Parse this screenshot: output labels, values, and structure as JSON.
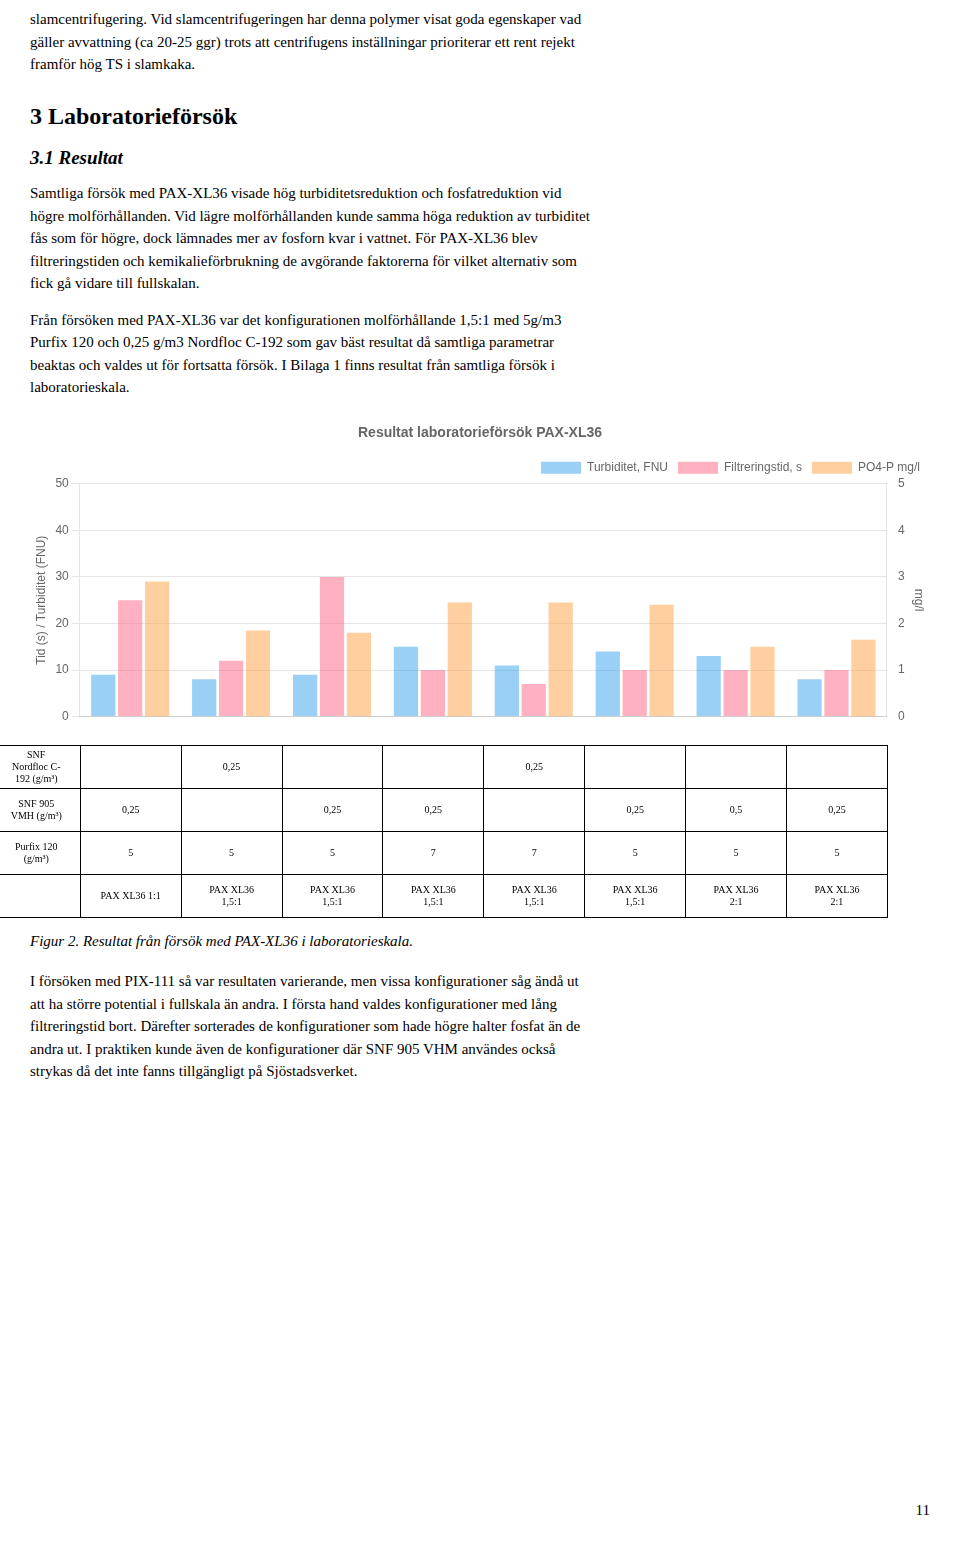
{
  "page": {
    "intro": "slamcentrifugering. Vid slamcentrifugeringen har denna polymer visat goda egenskaper vad\ngäller avvattning (ca 20-25 ggr) trots att centrifugens inställningar prioriterar ett rent rejekt\nframför hög TS i slamkaka.",
    "heading1": "3 Laboratorieförsök",
    "heading2": "3.1 Resultat",
    "para1": "Samtliga försök med PAX-XL36 visade hög turbiditetsreduktion och fosfatreduktion vid\nhögre molförhållanden. Vid lägre molförhållanden kunde samma höga reduktion av turbiditet\nfås som för högre, dock lämnades mer av fosforn kvar i vattnet. För PAX-XL36 blev\nfiltreringstiden och kemikalieförbrukning de avgörande faktorerna för vilket alternativ som\nfick gå vidare till fullskalan.",
    "para2": "Från försöken med PAX-XL36 var det konfigurationen molförhållande 1,5:1 med 5g/m3\nPurfix 120 och 0,25 g/m3 Nordfloc C-192 som gav bäst resultat då samtliga parametrar\nbeaktas och valdes ut för fortsatta försök. I Bilaga 1 finns resultat från samtliga försök i\nlaboratorieskala.",
    "caption_prefix": "Figur 2.",
    "caption_rest": " Resultat från försök med PAX-XL36 i laboratorieskala.",
    "para3": "I försöken med PIX-111 så var resultaten varierande, men vissa konfigurationer såg ändå ut\natt ha större potential i fullskala än andra. I första hand valdes konfigurationer med lång\nfiltreringstid bort. Därefter sorterades de konfigurationer som hade högre halter fosfat än de\nandra ut. I praktiken kunde även de konfigurationer där SNF 905 VHM användes också\nstrykas då det inte fanns tillgängligt på Sjöstadsverket.",
    "page_number": "11"
  },
  "chart_data": {
    "type": "bar",
    "title": "Resultat laboratorieförsök PAX-XL36",
    "ylabel": "Tid (s) / Turbiditet (FNU)",
    "y2label": "mg/l",
    "categories": [
      null,
      null,
      null,
      null,
      null,
      null,
      null,
      null
    ],
    "series": [
      {
        "name": "Turbiditet, FNU",
        "values": [
          9,
          8,
          9,
          15,
          11,
          14,
          13,
          8
        ]
      },
      {
        "name": "Filtreringstid, s",
        "values": [
          25,
          12,
          30,
          10,
          7,
          10,
          10,
          10
        ]
      },
      {
        "name": "PO4-P mg/l",
        "values": [
          2.9,
          1.85,
          1.8,
          2.45,
          2.45,
          2.4,
          1.5,
          1.65
        ],
        "axis": "y2"
      }
    ],
    "ylim": [
      0,
      50
    ],
    "yticks": [
      0,
      10,
      20,
      30,
      40,
      50
    ],
    "y2lim": [
      0,
      5
    ],
    "y2ticks": [
      0,
      1,
      2,
      3,
      4,
      5
    ],
    "grid": true,
    "legend": "upper right",
    "table": {
      "rows": [
        {
          "header": "SNF\nNordfloc C-\n192 (g/m³)",
          "cells": [
            null,
            "0,25",
            null,
            null,
            "0,25",
            null,
            null,
            null
          ]
        },
        {
          "header": "SNF 905\nVMH (g/m³)",
          "cells": [
            "0,25",
            null,
            "0,25",
            "0,25",
            null,
            "0,25",
            "0,5",
            "0,25"
          ]
        },
        {
          "header": "Purfix 120\n(g/m³)",
          "cells": [
            "5",
            "5",
            "5",
            "7",
            "7",
            "5",
            "5",
            "5"
          ]
        },
        {
          "header": null,
          "cells": [
            "PAX XL36 1:1",
            "PAX XL36\n1,5:1",
            "PAX XL36\n1,5:1",
            "PAX XL36\n1,5:1",
            "PAX XL36\n1,5:1",
            "PAX XL36\n1,5:1",
            "PAX XL36\n2:1",
            "PAX XL36\n2:1"
          ]
        }
      ]
    }
  }
}
